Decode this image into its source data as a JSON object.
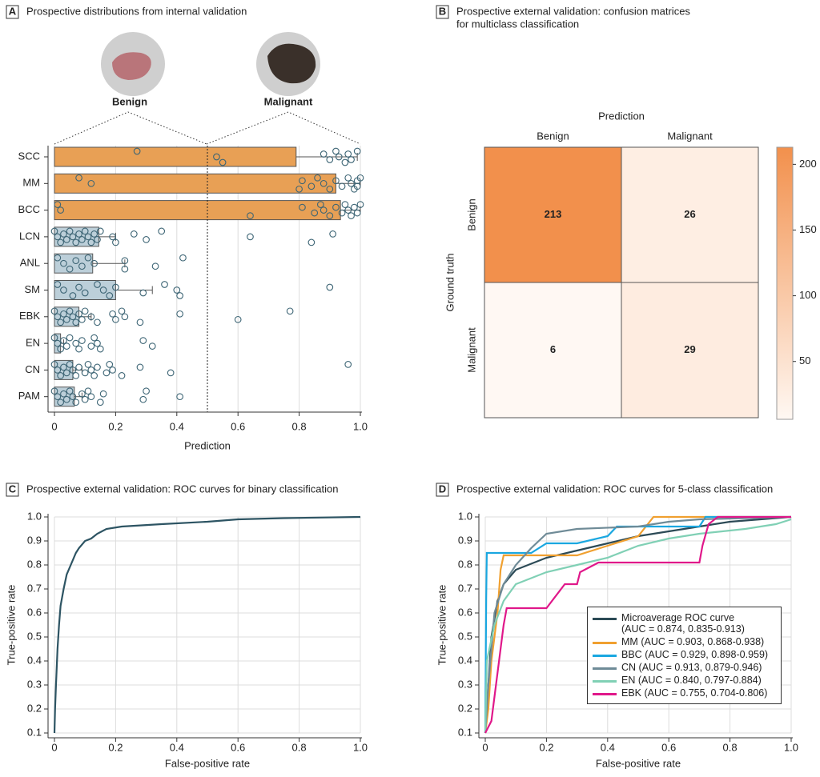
{
  "chart_data": [
    {
      "type": "box",
      "panel": "A",
      "title": "Prospective distributions from internal validation",
      "groups": [
        {
          "name": "Benign",
          "color": "#3d5f70"
        },
        {
          "name": "Malignant",
          "color": "#e8993f"
        }
      ],
      "categories": [
        "SCC",
        "MM",
        "BCC",
        "LCN",
        "ANL",
        "SM",
        "EBK",
        "EN",
        "CN",
        "PAM"
      ],
      "box_colors": [
        "#e8a055",
        "#e8a055",
        "#e8a055",
        "#bccfd9",
        "#bccfd9",
        "#bccfd9",
        "#bccfd9",
        "#bccfd9",
        "#bccfd9",
        "#bccfd9"
      ],
      "box_low": [
        0,
        0,
        0,
        0,
        0,
        0,
        0,
        0,
        0,
        0
      ],
      "box_high": [
        0.79,
        0.92,
        0.935,
        0.145,
        0.125,
        0.2,
        0.08,
        0.02,
        0.06,
        0.065
      ],
      "whisker_high": [
        0.99,
        1.0,
        1.0,
        0.2,
        0.23,
        0.32,
        0.12,
        0.03,
        0.09,
        0.09
      ],
      "points": [
        [
          0.27,
          0.53,
          0.55,
          0.88,
          0.9,
          0.92,
          0.93,
          0.95,
          0.96,
          0.97,
          0.99
        ],
        [
          0.08,
          0.12,
          0.8,
          0.81,
          0.84,
          0.86,
          0.88,
          0.9,
          0.92,
          0.94,
          0.96,
          0.97,
          0.98,
          0.99,
          0.99,
          1.0
        ],
        [
          0.01,
          0.02,
          0.64,
          0.81,
          0.85,
          0.87,
          0.88,
          0.9,
          0.92,
          0.94,
          0.95,
          0.96,
          0.97,
          0.98,
          0.99,
          1.0
        ],
        [
          0,
          0.01,
          0.02,
          0.03,
          0.04,
          0.05,
          0.06,
          0.07,
          0.08,
          0.09,
          0.1,
          0.11,
          0.12,
          0.13,
          0.14,
          0.15,
          0.19,
          0.2,
          0.26,
          0.3,
          0.35,
          0.64,
          0.84,
          0.91
        ],
        [
          0.01,
          0.03,
          0.05,
          0.07,
          0.09,
          0.11,
          0.13,
          0.23,
          0.23,
          0.33,
          0.42
        ],
        [
          0.01,
          0.03,
          0.06,
          0.08,
          0.1,
          0.14,
          0.16,
          0.18,
          0.2,
          0.29,
          0.36,
          0.4,
          0.41,
          0.9
        ],
        [
          0,
          0.01,
          0.02,
          0.03,
          0.04,
          0.05,
          0.06,
          0.07,
          0.08,
          0.09,
          0.1,
          0.12,
          0.14,
          0.19,
          0.2,
          0.22,
          0.23,
          0.28,
          0.41,
          0.6,
          0.77
        ],
        [
          0,
          0.01,
          0.02,
          0.03,
          0.04,
          0.05,
          0.07,
          0.08,
          0.09,
          0.12,
          0.13,
          0.14,
          0.15,
          0.29,
          0.32
        ],
        [
          0,
          0.01,
          0.02,
          0.03,
          0.04,
          0.05,
          0.06,
          0.07,
          0.08,
          0.1,
          0.11,
          0.12,
          0.13,
          0.14,
          0.17,
          0.18,
          0.19,
          0.22,
          0.28,
          0.38,
          0.96
        ],
        [
          0,
          0.01,
          0.02,
          0.03,
          0.04,
          0.05,
          0.06,
          0.07,
          0.09,
          0.1,
          0.11,
          0.12,
          0.15,
          0.16,
          0.29,
          0.3,
          0.41
        ]
      ],
      "threshold": 0.5,
      "xlabel": "Prediction",
      "xlim": [
        0,
        1
      ],
      "xticks": [
        0,
        0.2,
        0.4,
        0.6,
        0.8,
        {
          "value": 1,
          "label": "1.0"
        }
      ],
      "grid": true
    },
    {
      "type": "heatmap",
      "panel": "B",
      "title": [
        "Prospective external validation: confusion matrices",
        "for multiclass classification"
      ],
      "xlabel": "Prediction",
      "ylabel": "Ground truth",
      "categories": [
        "Benign",
        "Malignant"
      ],
      "values": [
        [
          213,
          26
        ],
        [
          6,
          29
        ]
      ],
      "clim": [
        6,
        213
      ],
      "colors": [
        "#fff8f3",
        "#f2904c"
      ],
      "cticks": [
        50,
        100,
        150,
        200
      ]
    },
    {
      "type": "line",
      "panel": "C",
      "title": "Prospective external validation: ROC curves for binary classification",
      "xlabel": "False-positive rate",
      "ylabel": "True-positive rate",
      "color": "#2d5463",
      "x": [
        0,
        0.002,
        0.005,
        0.01,
        0.015,
        0.02,
        0.03,
        0.04,
        0.05,
        0.06,
        0.07,
        0.08,
        0.1,
        0.12,
        0.14,
        0.17,
        0.22,
        0.35,
        0.5,
        0.6,
        0.75,
        1
      ],
      "y": [
        0.1,
        0.2,
        0.3,
        0.45,
        0.55,
        0.63,
        0.7,
        0.76,
        0.79,
        0.82,
        0.85,
        0.87,
        0.9,
        0.91,
        0.93,
        0.95,
        0.96,
        0.97,
        0.98,
        0.99,
        0.995,
        1
      ],
      "xlim": [
        0,
        1
      ],
      "ylim": [
        0.1,
        1
      ],
      "xticks": [
        0,
        0.2,
        0.4,
        0.6,
        0.8,
        {
          "value": 1,
          "label": "1.0"
        }
      ],
      "yticks": [
        0.1,
        0.2,
        0.3,
        0.4,
        0.5,
        0.6,
        0.7,
        0.8,
        0.9,
        {
          "value": 1,
          "label": "1.0"
        }
      ],
      "grid": true
    },
    {
      "type": "line",
      "panel": "D",
      "title": "Prospective external validation: ROC curves for 5-class classification",
      "xlabel": "False-positive rate",
      "ylabel": "True-positive rate",
      "series": [
        {
          "name": "Microaverage ROC curve",
          "auc_label": "(AUC = 0.874, 0.835-0.913)",
          "color": "#2c4a56",
          "x": [
            0,
            0.01,
            0.02,
            0.04,
            0.06,
            0.1,
            0.2,
            0.3,
            0.4,
            0.5,
            0.6,
            0.7,
            0.8,
            0.9,
            1
          ],
          "y": [
            0.1,
            0.3,
            0.5,
            0.65,
            0.72,
            0.78,
            0.83,
            0.86,
            0.89,
            0.92,
            0.94,
            0.96,
            0.98,
            0.99,
            1
          ]
        },
        {
          "name": "MM",
          "auc_label": "(AUC = 0.903, 0.868-0.938)",
          "color": "#f0a030",
          "x": [
            0,
            0.01,
            0.02,
            0.04,
            0.05,
            0.06,
            0.2,
            0.3,
            0.4,
            0.5,
            0.55,
            1
          ],
          "y": [
            0.1,
            0.2,
            0.4,
            0.6,
            0.78,
            0.84,
            0.84,
            0.84,
            0.88,
            0.92,
            1,
            1
          ]
        },
        {
          "name": "BBC",
          "auc_label": "(AUC = 0.929, 0.898-0.959)",
          "color": "#1aa7e0",
          "x": [
            0,
            0.003,
            0.005,
            0.15,
            0.2,
            0.3,
            0.4,
            0.43,
            0.7,
            0.72,
            1
          ],
          "y": [
            0.1,
            0.66,
            0.85,
            0.85,
            0.89,
            0.89,
            0.92,
            0.96,
            0.96,
            1,
            1
          ]
        },
        {
          "name": "CN",
          "auc_label": "(AUC = 0.913, 0.879-0.946)",
          "color": "#6f8b97",
          "x": [
            0,
            0.01,
            0.03,
            0.06,
            0.1,
            0.15,
            0.2,
            0.3,
            0.5,
            0.6,
            0.7,
            1
          ],
          "y": [
            0.1,
            0.3,
            0.6,
            0.72,
            0.8,
            0.87,
            0.93,
            0.95,
            0.96,
            0.98,
            0.99,
            1
          ]
        },
        {
          "name": "EN",
          "auc_label": "(AUC = 0.840, 0.797-0.884)",
          "color": "#80d0b5",
          "x": [
            0,
            0.005,
            0.03,
            0.06,
            0.1,
            0.2,
            0.3,
            0.4,
            0.5,
            0.6,
            0.7,
            0.85,
            0.95,
            1
          ],
          "y": [
            0.1,
            0.4,
            0.55,
            0.65,
            0.72,
            0.77,
            0.8,
            0.83,
            0.88,
            0.91,
            0.93,
            0.95,
            0.97,
            0.99
          ]
        },
        {
          "name": "EBK",
          "auc_label": "(AUC = 0.755, 0.704-0.806)",
          "color": "#e0188a",
          "x": [
            0,
            0.02,
            0.04,
            0.06,
            0.07,
            0.2,
            0.26,
            0.3,
            0.31,
            0.37,
            0.48,
            0.7,
            0.71,
            0.73,
            0.76,
            1
          ],
          "y": [
            0.1,
            0.15,
            0.35,
            0.55,
            0.62,
            0.62,
            0.72,
            0.72,
            0.77,
            0.81,
            0.81,
            0.81,
            0.88,
            0.97,
            1,
            1
          ]
        }
      ],
      "xlim": [
        0,
        1
      ],
      "ylim": [
        0.1,
        1
      ],
      "xticks": [
        0,
        0.2,
        0.4,
        0.6,
        0.8,
        {
          "value": 1,
          "label": "1.0"
        }
      ],
      "yticks": [
        0.1,
        0.2,
        0.3,
        0.4,
        0.5,
        0.6,
        0.7,
        0.8,
        0.9,
        {
          "value": 1,
          "label": "1.0"
        }
      ],
      "grid": true
    }
  ]
}
